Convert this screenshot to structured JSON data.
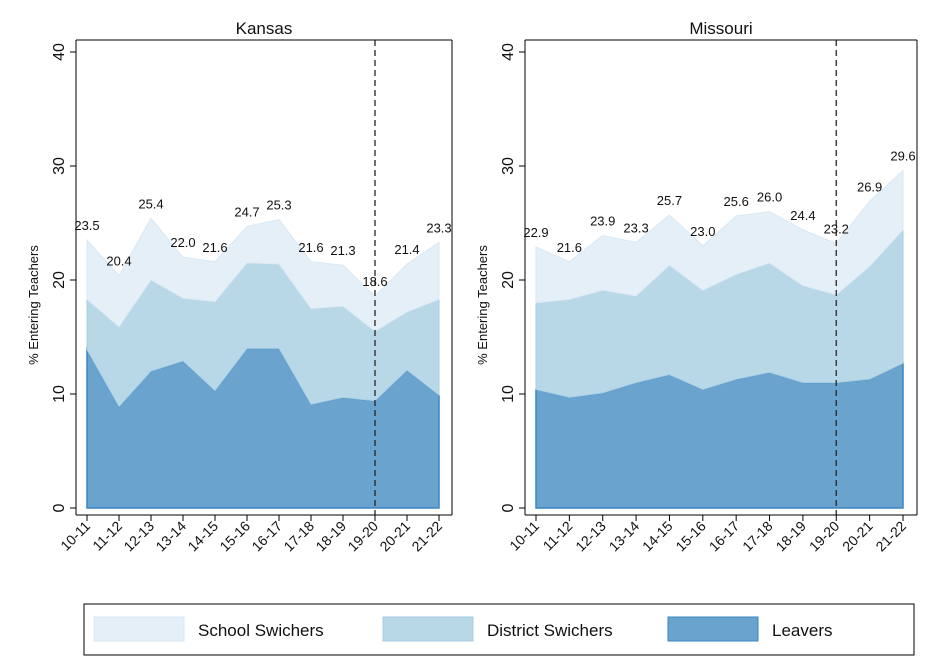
{
  "chart_data": [
    {
      "type": "area",
      "stacked": true,
      "title": "Kansas",
      "ylabel": "% Entering Teachers",
      "xlabel": "",
      "ylim": [
        0,
        40
      ],
      "yticks": [
        0,
        10,
        20,
        30,
        40
      ],
      "grid": false,
      "categories": [
        "10-11",
        "11-12",
        "12-13",
        "13-14",
        "14-15",
        "15-16",
        "16-17",
        "17-18",
        "18-19",
        "19-20",
        "20-21",
        "21-22"
      ],
      "vline_at": "19-20",
      "series": [
        {
          "name": "Leavers",
          "values": [
            13.9,
            8.9,
            12.0,
            12.9,
            10.3,
            14.0,
            14.0,
            9.1,
            9.7,
            9.4,
            12.1,
            9.9
          ]
        },
        {
          "name": "District Swichers",
          "values": [
            4.4,
            7.0,
            8.0,
            5.5,
            7.8,
            7.5,
            7.4,
            8.4,
            8.0,
            6.1,
            5.1,
            8.4
          ]
        },
        {
          "name": "School Swichers",
          "values": [
            5.2,
            4.5,
            5.4,
            3.6,
            3.5,
            3.2,
            3.9,
            4.1,
            3.6,
            3.1,
            4.2,
            5.0
          ]
        }
      ],
      "totals_labels": [
        "23.5",
        "20.4",
        "25.4",
        "22.0",
        "21.6",
        "24.7",
        "25.3",
        "21.6",
        "21.3",
        "18.6",
        "21.4",
        "23.3"
      ]
    },
    {
      "type": "area",
      "stacked": true,
      "title": "Missouri",
      "ylabel": "% Entering Teachers",
      "xlabel": "",
      "ylim": [
        0,
        40
      ],
      "yticks": [
        0,
        10,
        20,
        30,
        40
      ],
      "grid": false,
      "categories": [
        "10-11",
        "11-12",
        "12-13",
        "13-14",
        "14-15",
        "15-16",
        "16-17",
        "17-18",
        "18-19",
        "19-20",
        "20-21",
        "21-22"
      ],
      "vline_at": "19-20",
      "series": [
        {
          "name": "Leavers",
          "values": [
            10.4,
            9.7,
            10.1,
            11.0,
            11.7,
            10.4,
            11.3,
            11.9,
            11.0,
            11.0,
            11.3,
            12.7
          ]
        },
        {
          "name": "District Swichers",
          "values": [
            7.6,
            8.6,
            9.0,
            7.6,
            9.6,
            8.7,
            9.2,
            9.6,
            8.5,
            7.7,
            9.9,
            11.7
          ]
        },
        {
          "name": "School Swichers",
          "values": [
            4.9,
            3.3,
            4.8,
            4.7,
            4.4,
            3.9,
            5.1,
            4.5,
            4.9,
            4.5,
            5.7,
            5.2
          ]
        }
      ],
      "totals_labels": [
        "22.9",
        "21.6",
        "23.9",
        "23.3",
        "25.7",
        "23.0",
        "25.6",
        "26.0",
        "24.4",
        "23.2",
        "26.9",
        "29.6"
      ]
    }
  ],
  "legend": {
    "position": "bottom",
    "items": [
      {
        "label": "School Swichers",
        "color": "#e5eff8"
      },
      {
        "label": "District Swichers",
        "color": "#b8d8e8"
      },
      {
        "label": "Leavers",
        "color": "#6ba3cf"
      }
    ]
  },
  "colors": {
    "leavers": "#6ba3cf",
    "leavers_line": "#3a86c2",
    "district": "#b8d8e8",
    "district_line": "#a6cde2",
    "school": "#e5eff8",
    "school_line": "#d9e8f4"
  }
}
